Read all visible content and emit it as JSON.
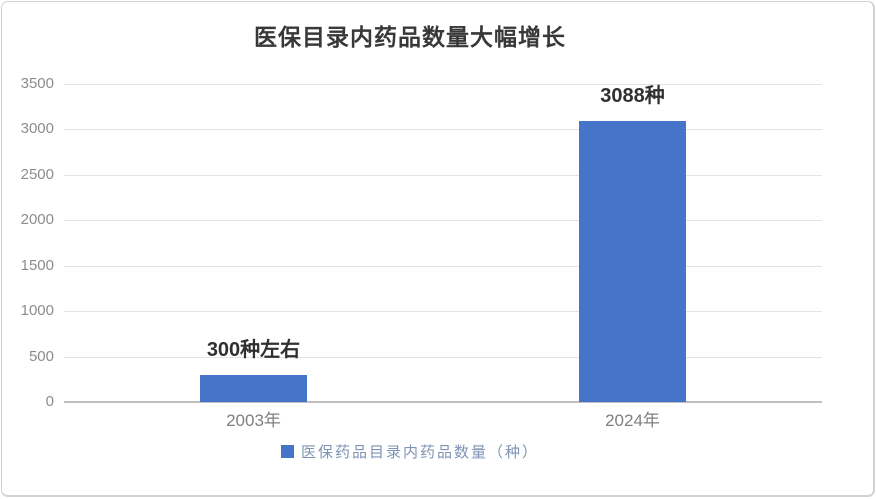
{
  "chart_data": {
    "type": "bar",
    "title": "医保目录内药品数量大幅增长",
    "categories": [
      "2003年",
      "2024年"
    ],
    "values": [
      300,
      3088
    ],
    "data_labels": [
      "300种左右",
      "3088种"
    ],
    "legend": [
      "医保药品目录内药品数量（种）"
    ],
    "legend_position": "bottom",
    "xlabel": "",
    "ylabel": "",
    "ylim": [
      0,
      3500
    ],
    "yticks": [
      0,
      500,
      1000,
      1500,
      2000,
      2500,
      3000,
      3500
    ],
    "grid": true,
    "colors": {
      "bar": "#4574c9",
      "grid_line": "#e3e3e3",
      "axis_line": "#bfbfbf",
      "title_text": "#383838",
      "ytick_text": "#8c8c8c",
      "xtick_text": "#7f7f7f",
      "data_label_text": "#303030",
      "legend_text": "#7e93b5",
      "frame_border": "#d2d2d2",
      "background": "#ffffff"
    }
  }
}
